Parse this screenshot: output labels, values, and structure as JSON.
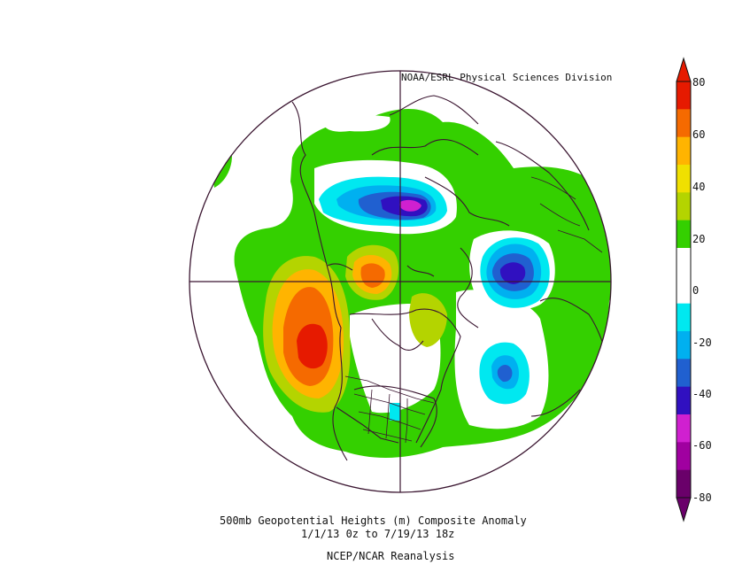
{
  "credit": "NOAA/ESRL Physical Sciences Division",
  "title_line1": "500mb Geopotential Heights (m)   Composite Anomaly",
  "title_line2": "1/1/13 0z  to 7/19/13 18z",
  "source": "NCEP/NCAR Reanalysis",
  "colorbar": {
    "labels": [
      "80",
      "60",
      "40",
      "20",
      "0",
      "-20",
      "-40",
      "-60",
      "-80"
    ],
    "colors": [
      "#e61a00",
      "#f56a00",
      "#ffb400",
      "#f0e000",
      "#b4d400",
      "#34d000",
      "#ffffff",
      "#ffffff",
      "#00e8f0",
      "#00b0f0",
      "#2060d0",
      "#3010c0",
      "#d020d0",
      "#a000a0",
      "#6a006a"
    ]
  }
}
